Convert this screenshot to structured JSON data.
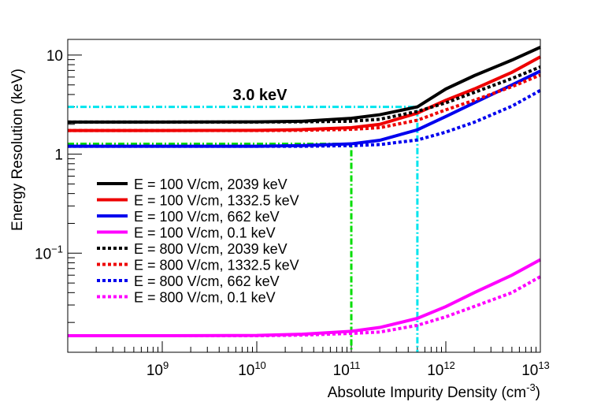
{
  "chart_data": {
    "type": "line",
    "annotation": "3.0 keV",
    "xlabel": "Absolute Impurity Density (cm^-3)",
    "ylabel": "Energy Resolution (keV)",
    "xscale": "log",
    "yscale": "log",
    "xlim": [
      100000000.0,
      10000000000000.0
    ],
    "ylim": [
      0.01,
      14.4
    ],
    "xticks": [
      {
        "value": 1000000000.0,
        "label": "10^9"
      },
      {
        "value": 10000000000.0,
        "label": "10^10"
      },
      {
        "value": 100000000000.0,
        "label": "10^11"
      },
      {
        "value": 1000000000000.0,
        "label": "10^12"
      },
      {
        "value": 10000000000000.0,
        "label": "10^13"
      }
    ],
    "yticks": [
      {
        "value": 0.1,
        "label": "10^−1"
      },
      1,
      10
    ],
    "legend": "lower left",
    "x": [
      100000000.0,
      1000000000.0,
      10000000000.0,
      30000000000.0,
      100000000000.0,
      200000000000.0,
      500000000000.0,
      1000000000000.0,
      2000000000000.0,
      5000000000000.0,
      10000000000000.0
    ],
    "series": [
      {
        "name": "E = 100 V/cm, 2039 keV",
        "color": "#000000",
        "style": "solid",
        "values": [
          2.11,
          2.11,
          2.12,
          2.15,
          2.3,
          2.5,
          3.0,
          4.55,
          6.2,
          8.9,
          12.0
        ]
      },
      {
        "name": "E = 100 V/cm, 1332.5 keV",
        "color": "#ee0000",
        "style": "solid",
        "values": [
          1.73,
          1.73,
          1.74,
          1.77,
          1.85,
          2.0,
          2.6,
          3.5,
          4.55,
          6.7,
          9.6
        ]
      },
      {
        "name": "E = 100 V/cm, 662 keV",
        "color": "#0000ee",
        "style": "solid",
        "values": [
          1.2,
          1.2,
          1.2,
          1.22,
          1.27,
          1.38,
          1.76,
          2.4,
          3.3,
          5.0,
          6.9
        ]
      },
      {
        "name": "E = 100 V/cm, 0.1 keV",
        "color": "#ff00ff",
        "style": "solid",
        "values": [
          0.0147,
          0.0147,
          0.0148,
          0.0152,
          0.0163,
          0.0178,
          0.022,
          0.0289,
          0.04,
          0.06,
          0.086
        ]
      },
      {
        "name": "E = 800 V/cm, 2039 keV",
        "color": "#000000",
        "style": "dotted",
        "values": [
          2.11,
          2.11,
          2.11,
          2.12,
          2.15,
          2.25,
          2.7,
          3.3,
          4.2,
          5.8,
          7.6
        ]
      },
      {
        "name": "E = 800 V/cm, 1332.5 keV",
        "color": "#ee0000",
        "style": "dotted",
        "values": [
          1.73,
          1.73,
          1.73,
          1.74,
          1.78,
          1.85,
          2.2,
          2.8,
          3.5,
          4.8,
          6.3
        ]
      },
      {
        "name": "E = 800 V/cm, 662 keV",
        "color": "#0000ee",
        "style": "dotted",
        "values": [
          1.2,
          1.2,
          1.2,
          1.2,
          1.22,
          1.25,
          1.39,
          1.67,
          2.1,
          3.05,
          4.4
        ]
      },
      {
        "name": "E = 800 V/cm, 0.1 keV",
        "color": "#ff00ff",
        "style": "dotted",
        "values": [
          0.0147,
          0.0147,
          0.0147,
          0.0149,
          0.0155,
          0.016,
          0.0187,
          0.0228,
          0.029,
          0.04,
          0.058
        ]
      }
    ],
    "reference_lines": [
      {
        "x": 500000000000.0,
        "y": 3.0,
        "color": "#00e5ee"
      },
      {
        "x": 100000000000.0,
        "y": 1.27,
        "color": "#00dd00"
      }
    ]
  }
}
